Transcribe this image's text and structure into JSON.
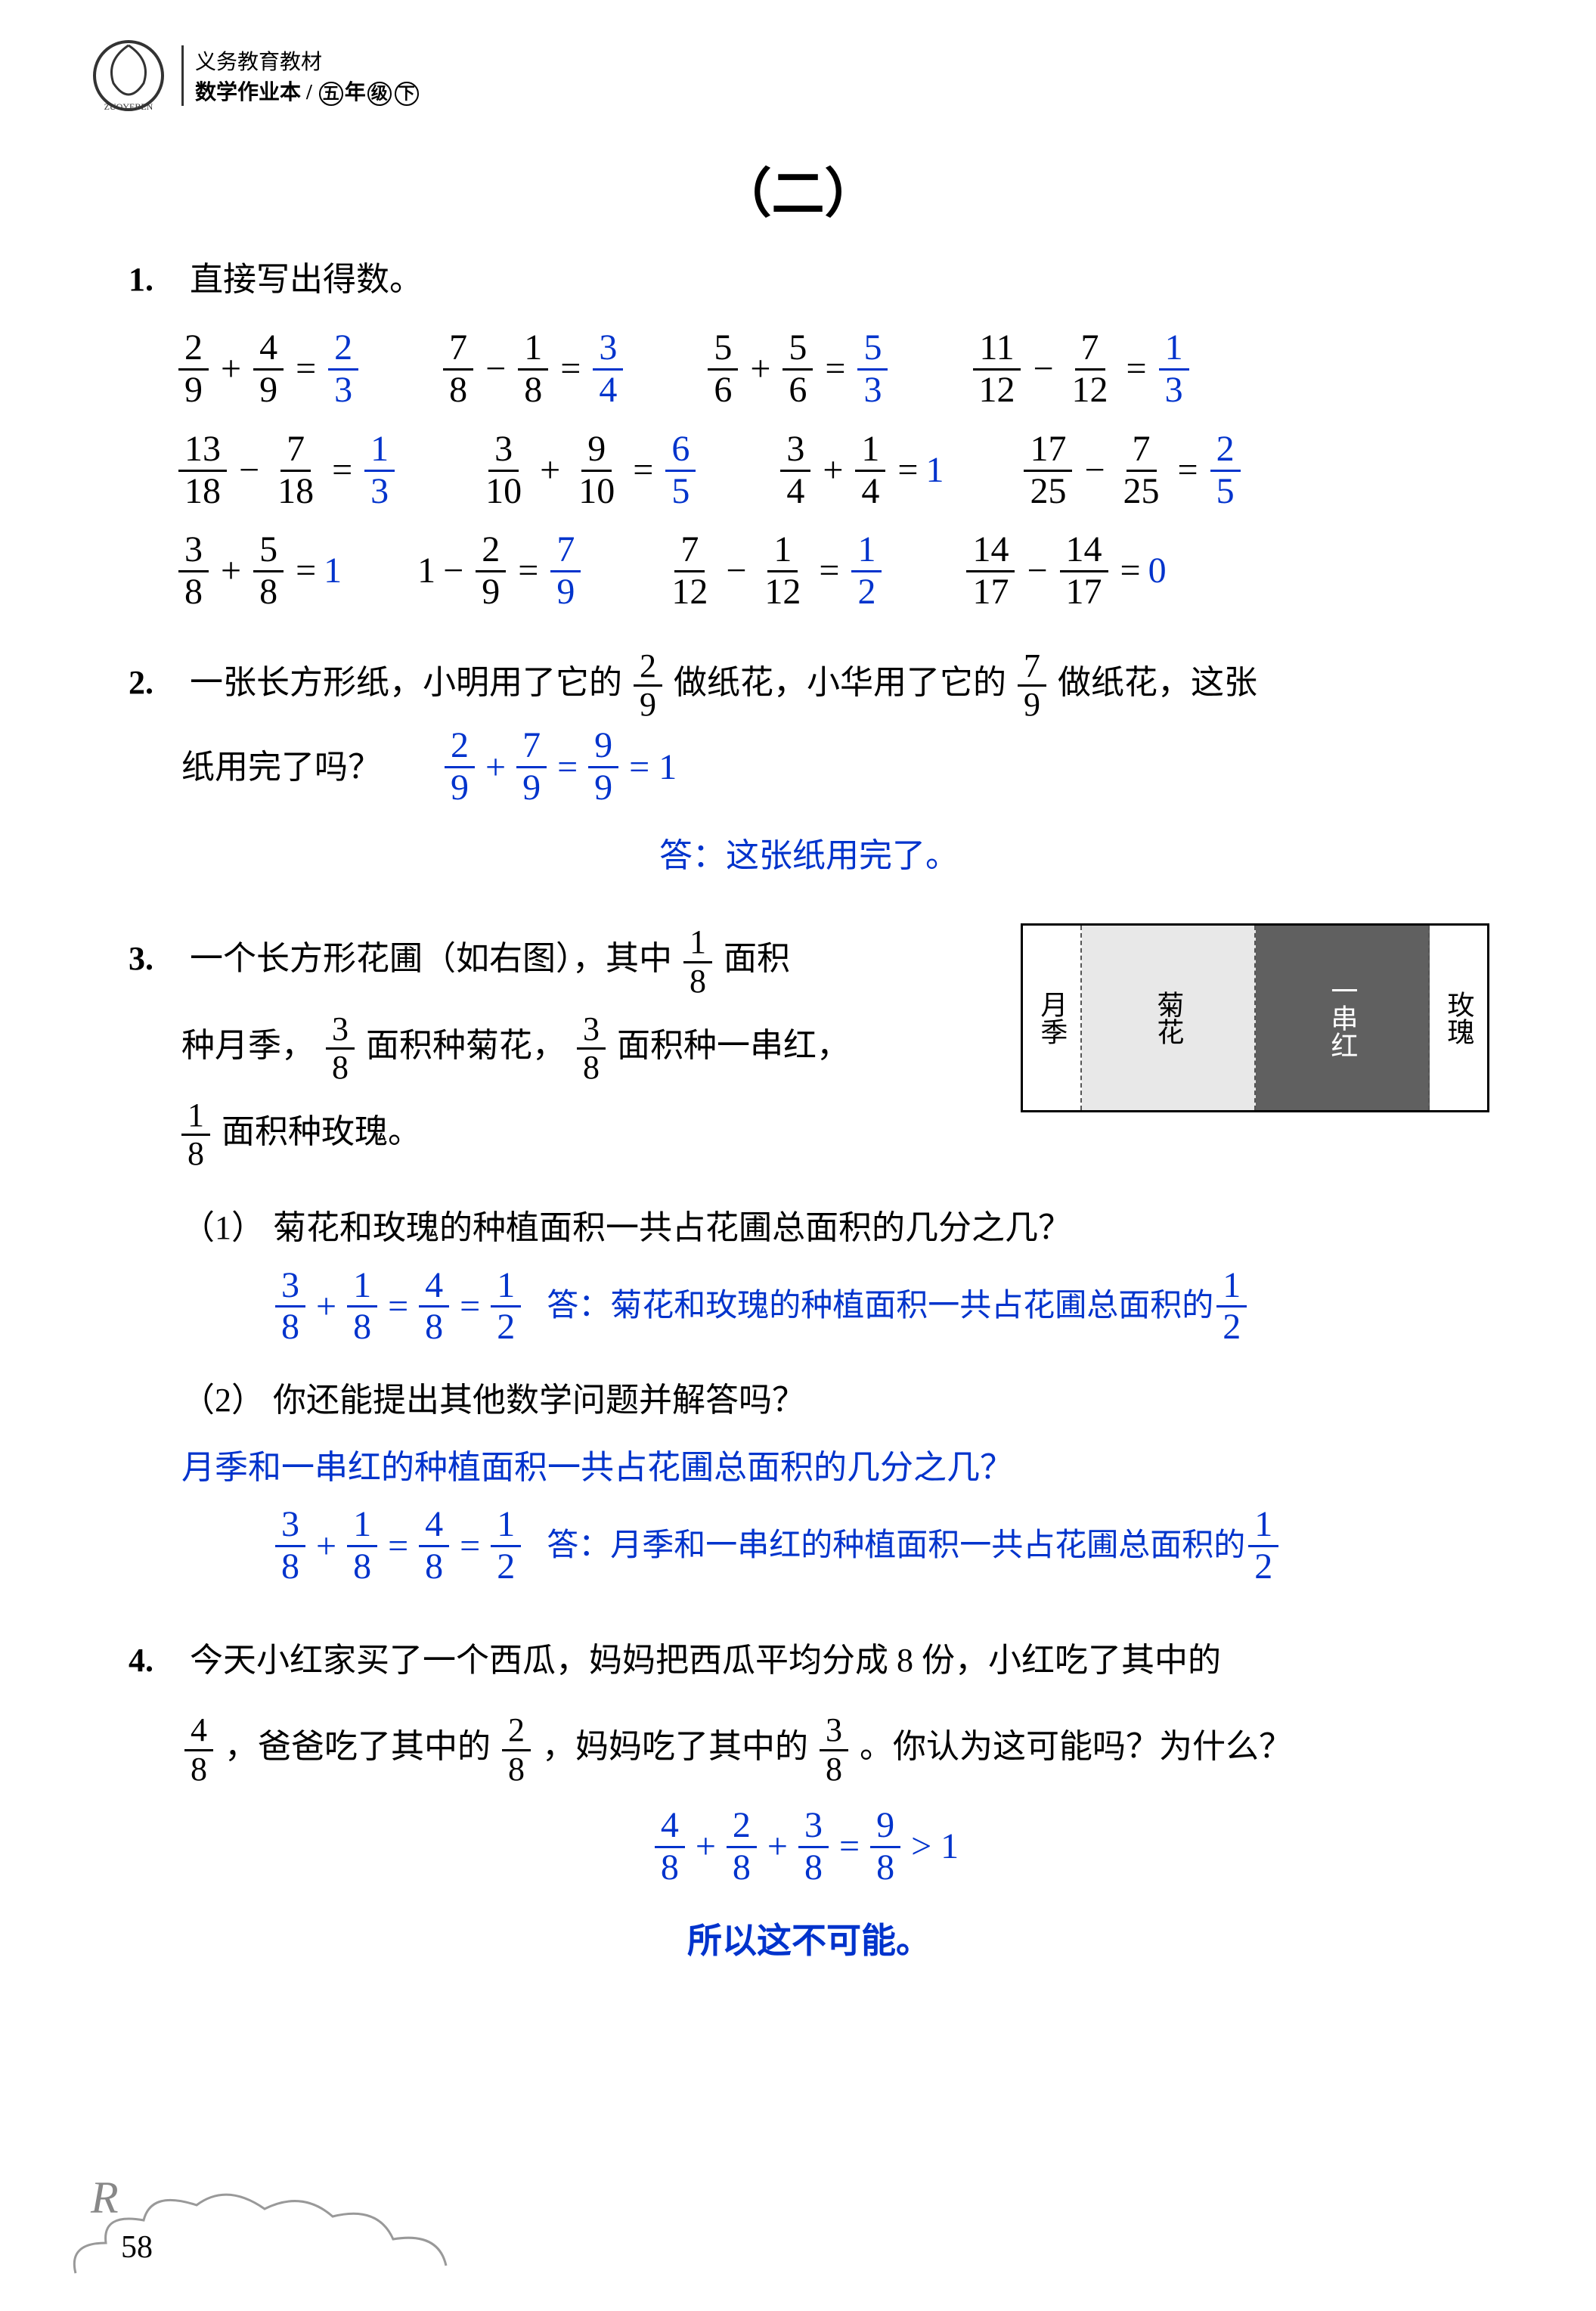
{
  "header": {
    "line1": "义务教育教材",
    "line2": "数学作业本",
    "grade": "五年级下"
  },
  "section_title": "（二）",
  "page_number": "58",
  "problems": {
    "p1": {
      "num": "1.",
      "text": "直接写出得数。",
      "rows": [
        [
          {
            "a_num": "2",
            "a_den": "9",
            "op": "+",
            "b_num": "4",
            "b_den": "9",
            "r_num": "2",
            "r_den": "3"
          },
          {
            "a_num": "7",
            "a_den": "8",
            "op": "−",
            "b_num": "1",
            "b_den": "8",
            "r_num": "3",
            "r_den": "4"
          },
          {
            "a_num": "5",
            "a_den": "6",
            "op": "+",
            "b_num": "5",
            "b_den": "6",
            "r_num": "5",
            "r_den": "3"
          },
          {
            "a_num": "11",
            "a_den": "12",
            "op": "−",
            "b_num": "7",
            "b_den": "12",
            "r_num": "1",
            "r_den": "3"
          }
        ],
        [
          {
            "a_num": "13",
            "a_den": "18",
            "op": "−",
            "b_num": "7",
            "b_den": "18",
            "r_num": "1",
            "r_den": "3"
          },
          {
            "a_num": "3",
            "a_den": "10",
            "op": "+",
            "b_num": "9",
            "b_den": "10",
            "r_num": "6",
            "r_den": "5"
          },
          {
            "a_num": "3",
            "a_den": "4",
            "op": "+",
            "b_num": "1",
            "b_den": "4",
            "r_whole": "1"
          },
          {
            "a_num": "17",
            "a_den": "25",
            "op": "−",
            "b_num": "7",
            "b_den": "25",
            "r_num": "2",
            "r_den": "5"
          }
        ],
        [
          {
            "a_num": "3",
            "a_den": "8",
            "op": "+",
            "b_num": "5",
            "b_den": "8",
            "r_whole": "1"
          },
          {
            "a_whole": "1",
            "op": "−",
            "b_num": "2",
            "b_den": "9",
            "r_num": "7",
            "r_den": "9"
          },
          {
            "a_num": "7",
            "a_den": "12",
            "op": "−",
            "b_num": "1",
            "b_den": "12",
            "r_num": "1",
            "r_den": "2"
          },
          {
            "a_num": "14",
            "a_den": "17",
            "op": "−",
            "b_num": "14",
            "b_den": "17",
            "r_whole": "0"
          }
        ]
      ]
    },
    "p2": {
      "num": "2.",
      "text_before": "一张长方形纸，小明用了它的",
      "frac1_num": "2",
      "frac1_den": "9",
      "text_mid": "做纸花，小华用了它的",
      "frac2_num": "7",
      "frac2_den": "9",
      "text_after": "做纸花，这张",
      "text_line2": "纸用完了吗？",
      "eq": {
        "a_num": "2",
        "a_den": "9",
        "b_num": "7",
        "b_den": "9",
        "r_num": "9",
        "r_den": "9",
        "final": "= 1"
      },
      "answer": "答：这张纸用完了。"
    },
    "p3": {
      "num": "3.",
      "text1_before": "一个长方形花圃（如右图），其中",
      "f1_num": "1",
      "f1_den": "8",
      "text1_after": "面积",
      "text2_before": "种月季，",
      "f2_num": "3",
      "f2_den": "8",
      "text2_mid": "面积种菊花，",
      "f3_num": "3",
      "f3_den": "8",
      "text2_after": "面积种一串红，",
      "f4_num": "1",
      "f4_den": "8",
      "text3_after": "面积种玫瑰。",
      "garden": {
        "p1": "月季",
        "p2": "菊花",
        "p3": "一串红",
        "p4": "玫瑰"
      },
      "q1": {
        "label": "（1）",
        "text": "菊花和玫瑰的种植面积一共占花圃总面积的几分之几？",
        "eq": {
          "a_num": "3",
          "a_den": "8",
          "b_num": "1",
          "b_den": "8",
          "m_num": "4",
          "m_den": "8",
          "r_num": "1",
          "r_den": "2"
        },
        "answer": "答：菊花和玫瑰的种植面积一共占花圃总面积的",
        "ans_frac_num": "1",
        "ans_frac_den": "2"
      },
      "q2": {
        "label": "（2）",
        "text": "你还能提出其他数学问题并解答吗？",
        "student_q": "月季和一串红的种植面积一共占花圃总面积的几分之几？",
        "eq": {
          "a_num": "3",
          "a_den": "8",
          "b_num": "1",
          "b_den": "8",
          "m_num": "4",
          "m_den": "8",
          "r_num": "1",
          "r_den": "2"
        },
        "answer": "答：月季和一串红的种植面积一共占花圃总面积的",
        "ans_frac_num": "1",
        "ans_frac_den": "2"
      }
    },
    "p4": {
      "num": "4.",
      "text_before": "今天小红家买了一个西瓜，妈妈把西瓜平均分成 8 份，小红吃了其中的",
      "f1_num": "4",
      "f1_den": "8",
      "text_mid1": "，爸爸吃了其中的",
      "f2_num": "2",
      "f2_den": "8",
      "text_mid2": "，妈妈吃了其中的",
      "f3_num": "3",
      "f3_den": "8",
      "text_after": "。你认为这可能吗？为什么？",
      "eq": {
        "a_num": "4",
        "a_den": "8",
        "b_num": "2",
        "b_den": "8",
        "c_num": "3",
        "c_den": "8",
        "r_num": "9",
        "r_den": "8",
        "cmp": "> 1"
      },
      "conclusion": "所以这不可能。"
    }
  }
}
